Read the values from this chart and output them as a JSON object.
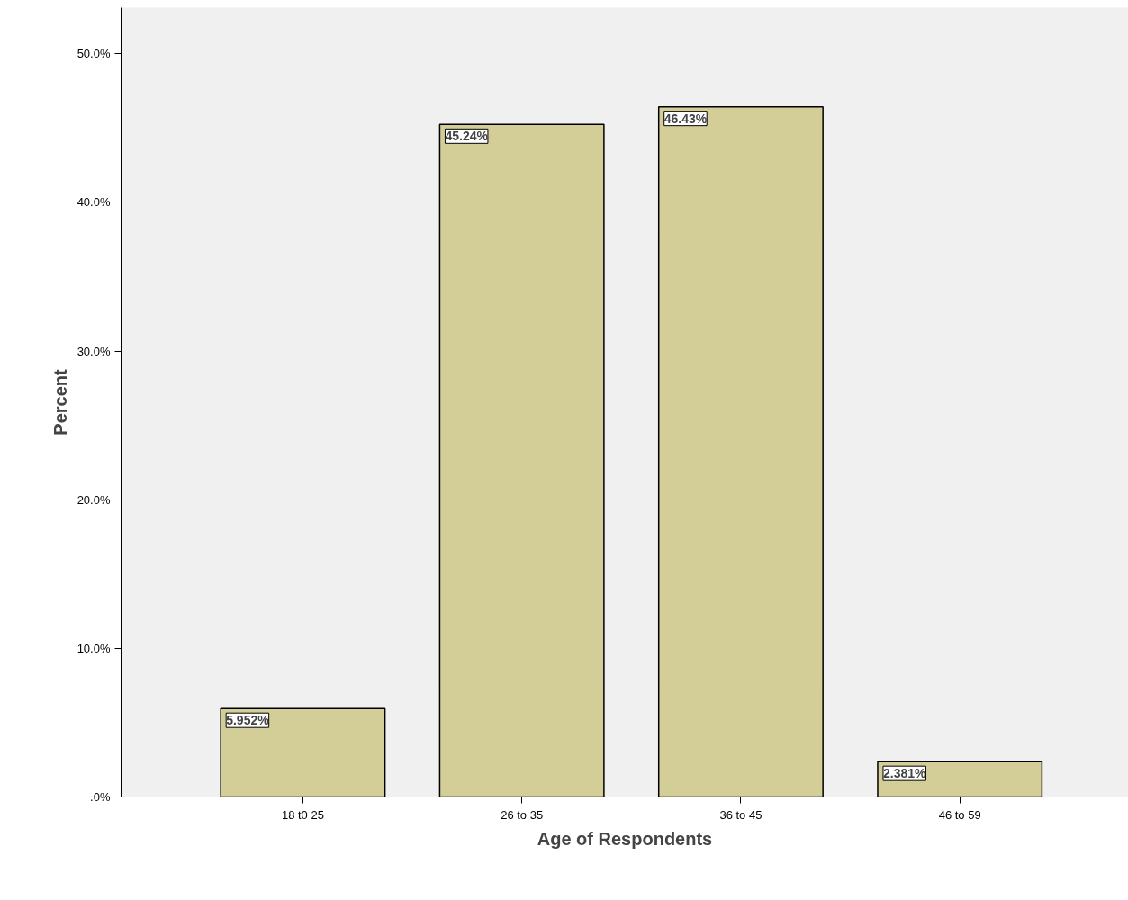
{
  "chart_data": {
    "type": "bar",
    "xlabel": "Age of Respondents",
    "ylabel": "Percent",
    "categories": [
      "18 t0 25",
      "26 to 35",
      "36 to 45",
      "46 to 59"
    ],
    "values": [
      5.952,
      45.24,
      46.43,
      2.381
    ],
    "value_labels": [
      "5.952%",
      "45.24%",
      "46.43%",
      "2.381%"
    ],
    "color": "#d3ce97",
    "ylim": [
      0,
      53.1
    ],
    "yticks": [
      {
        "value": 0,
        "label": ".0%"
      },
      {
        "value": 10,
        "label": "10.0%"
      },
      {
        "value": 20,
        "label": "20.0%"
      },
      {
        "value": 30,
        "label": "30.0%"
      },
      {
        "value": 40,
        "label": "40.0%"
      },
      {
        "value": 50,
        "label": "50.0%"
      }
    ],
    "grid": false
  }
}
